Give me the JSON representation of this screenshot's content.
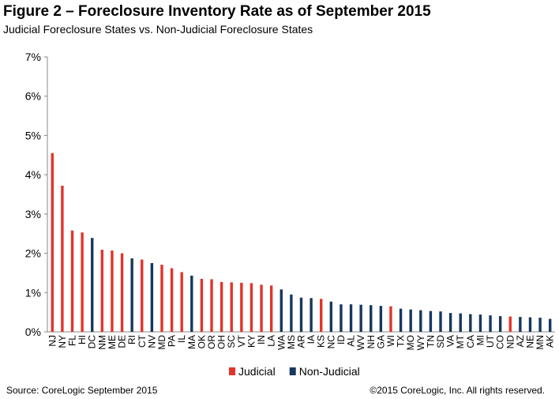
{
  "chart_data": {
    "type": "bar",
    "title": "Figure 2 – Foreclosure Inventory Rate as of September 2015",
    "subtitle": "Judicial Foreclosure States vs. Non-Judicial Foreclosure States",
    "categories": [
      "NJ",
      "NY",
      "FL",
      "HI",
      "DC",
      "NM",
      "ME",
      "DE",
      "RI",
      "CT",
      "NV",
      "MD",
      "PA",
      "IL",
      "MA",
      "OK",
      "OR",
      "OH",
      "SC",
      "VT",
      "KY",
      "IN",
      "LA",
      "WA",
      "MS",
      "AR",
      "IA",
      "KS",
      "NC",
      "ID",
      "AL",
      "WV",
      "NH",
      "GA",
      "WI",
      "TX",
      "MO",
      "WY",
      "TN",
      "SD",
      "VA",
      "MT",
      "CA",
      "MI",
      "UT",
      "CO",
      "ND",
      "AZ",
      "NE",
      "MN",
      "AK"
    ],
    "series": [
      {
        "name": "Judicial",
        "color": "#e3342a",
        "values": [
          4.55,
          3.72,
          2.58,
          2.53,
          null,
          2.09,
          2.07,
          2.0,
          null,
          1.84,
          null,
          1.71,
          1.62,
          1.52,
          null,
          1.35,
          1.34,
          1.27,
          1.26,
          1.25,
          1.24,
          1.2,
          1.18,
          null,
          null,
          null,
          null,
          0.84,
          null,
          null,
          null,
          null,
          null,
          null,
          0.65,
          null,
          null,
          null,
          null,
          null,
          null,
          null,
          null,
          null,
          null,
          null,
          0.39,
          null,
          null,
          null,
          null
        ]
      },
      {
        "name": "Non-Judicial",
        "color": "#17375e",
        "values": [
          null,
          null,
          null,
          null,
          2.39,
          null,
          null,
          null,
          1.87,
          null,
          1.75,
          null,
          null,
          null,
          1.43,
          null,
          null,
          null,
          null,
          null,
          null,
          null,
          null,
          1.08,
          0.95,
          0.87,
          0.86,
          null,
          0.77,
          0.7,
          0.7,
          0.69,
          0.68,
          0.66,
          null,
          0.59,
          0.57,
          0.55,
          0.53,
          0.52,
          0.48,
          0.47,
          0.45,
          0.44,
          0.42,
          0.4,
          null,
          0.38,
          0.37,
          0.36,
          0.33
        ]
      }
    ],
    "ylim": [
      0,
      7
    ],
    "yticks": [
      {
        "value": 0,
        "label": "0%"
      },
      {
        "value": 1,
        "label": "1%"
      },
      {
        "value": 2,
        "label": "2%"
      },
      {
        "value": 3,
        "label": "3%"
      },
      {
        "value": 4,
        "label": "4%"
      },
      {
        "value": 5,
        "label": "5%"
      },
      {
        "value": 6,
        "label": "6%"
      },
      {
        "value": 7,
        "label": "7%"
      }
    ],
    "source": "Source: CoreLogic  September 2015",
    "copyright": "©2015 CoreLogic, Inc. All rights reserved."
  }
}
